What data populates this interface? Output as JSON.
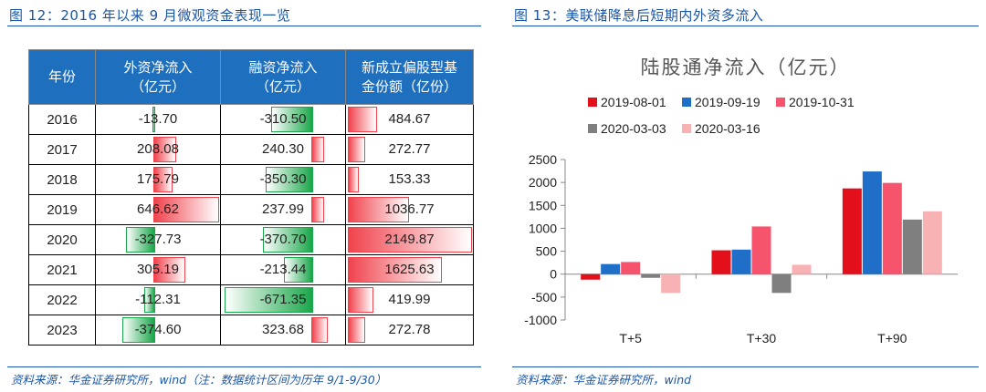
{
  "left_panel": {
    "title": "图 12：2016 年以来 9 月微观资金表现一览",
    "source": "资料来源：华金证券研究所，wind（注：数据统计区间为历年 9/1-9/30）",
    "table": {
      "headers": [
        "年份",
        "外资净流入\n（亿元）",
        "融资净流入\n（亿元）",
        "新成立偏股型基\n金份额（亿份）"
      ],
      "rows": [
        {
          "year": "2016",
          "foreign": "-13.70",
          "margin": "-310.50",
          "fund": "484.67"
        },
        {
          "year": "2017",
          "foreign": "208.08",
          "margin": "240.30",
          "fund": "272.77"
        },
        {
          "year": "2018",
          "foreign": "175.79",
          "margin": "-350.30",
          "fund": "153.33"
        },
        {
          "year": "2019",
          "foreign": "646.62",
          "margin": "237.99",
          "fund": "1036.77"
        },
        {
          "year": "2020",
          "foreign": "-327.73",
          "margin": "-370.70",
          "fund": "2149.87"
        },
        {
          "year": "2021",
          "foreign": "305.19",
          "margin": "-213.44",
          "fund": "1625.63"
        },
        {
          "year": "2022",
          "foreign": "-112.31",
          "margin": "-671.35",
          "fund": "419.99"
        },
        {
          "year": "2023",
          "foreign": "-374.60",
          "margin": "323.68",
          "fund": "272.78"
        }
      ]
    },
    "colors": {
      "header_bg": "#1f6fbf",
      "positive_bar": "#f0434d",
      "negative_bar": "#1aa64a"
    }
  },
  "right_panel": {
    "title": "图 13：美联储降息后短期内外资多流入",
    "source": "资料来源：华金证券研究所，wind"
  },
  "chart_data": [
    {
      "type": "table",
      "title": "图 12：2016 年以来 9 月微观资金表现一览",
      "columns": [
        "年份",
        "外资净流入（亿元）",
        "融资净流入（亿元）",
        "新成立偏股型基金份额（亿份）"
      ],
      "rows": [
        [
          "2016",
          -13.7,
          -310.5,
          484.67
        ],
        [
          "2017",
          208.08,
          240.3,
          272.77
        ],
        [
          "2018",
          175.79,
          -350.3,
          153.33
        ],
        [
          "2019",
          646.62,
          237.99,
          1036.77
        ],
        [
          "2020",
          -327.73,
          -370.7,
          2149.87
        ],
        [
          "2021",
          305.19,
          -213.44,
          1625.63
        ],
        [
          "2022",
          -112.31,
          -671.35,
          419.99
        ],
        [
          "2023",
          -374.6,
          323.68,
          272.78
        ]
      ]
    },
    {
      "type": "bar",
      "title": "陆股通净流入（亿元）",
      "categories": [
        "T+5",
        "T+30",
        "T+90"
      ],
      "series": [
        {
          "name": "2019-08-01",
          "color": "#e3101c",
          "values": [
            -120,
            520,
            1870
          ]
        },
        {
          "name": "2019-09-19",
          "color": "#1f6fc8",
          "values": [
            220,
            535,
            2240
          ]
        },
        {
          "name": "2019-10-31",
          "color": "#f6546c",
          "values": [
            265,
            1040,
            1990
          ]
        },
        {
          "name": "2020-03-03",
          "color": "#7f7f7f",
          "values": [
            -80,
            -410,
            1190
          ]
        },
        {
          "name": "2020-03-16",
          "color": "#f8b2b4",
          "values": [
            -410,
            205,
            1370
          ]
        }
      ],
      "ylim": [
        -1000,
        2500
      ],
      "yticks": [
        -1000,
        -500,
        0,
        500,
        1000,
        1500,
        2000,
        2500
      ],
      "grid": false,
      "legend": "top"
    }
  ]
}
